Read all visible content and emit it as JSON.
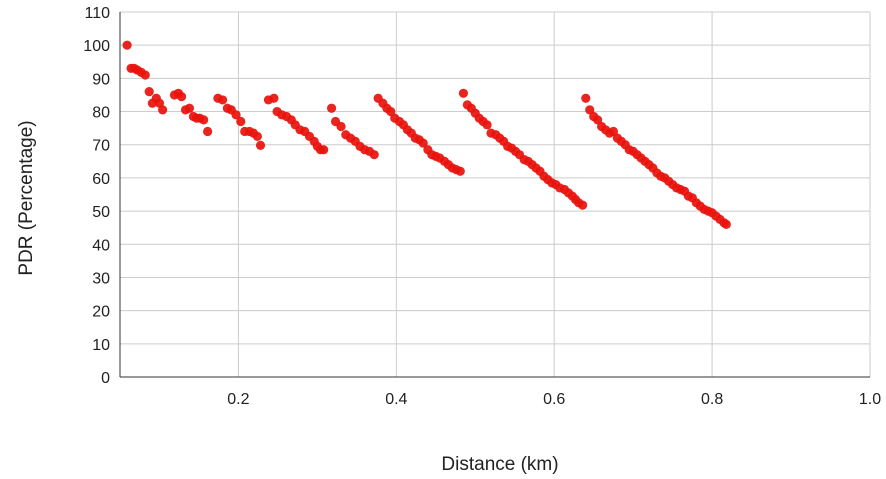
{
  "chart_data": {
    "type": "scatter",
    "title": "",
    "xlabel": "Distance (km)",
    "ylabel": "PDR (Percentage)",
    "xlim": [
      0.05,
      1.0
    ],
    "ylim": [
      0,
      110
    ],
    "x_ticks": [
      0.2,
      0.4,
      0.6,
      0.8,
      1.0
    ],
    "x_tick_labels": [
      "0.2",
      "0.4",
      "0.6",
      "0.8",
      "1.0"
    ],
    "y_ticks": [
      0,
      10,
      20,
      30,
      40,
      50,
      60,
      70,
      80,
      90,
      100,
      110
    ],
    "y_tick_labels": [
      "0",
      "10",
      "20",
      "30",
      "40",
      "50",
      "60",
      "70",
      "80",
      "90",
      "100",
      "110"
    ],
    "grid": true,
    "legend": "none",
    "marker_color": "#e8120c",
    "series": [
      {
        "points": [
          [
            0.059,
            100.0
          ],
          [
            0.064,
            93.0
          ],
          [
            0.068,
            93.0
          ],
          [
            0.072,
            92.5
          ],
          [
            0.077,
            91.8
          ],
          [
            0.082,
            91.0
          ],
          [
            0.087,
            86.0
          ],
          [
            0.091,
            82.5
          ],
          [
            0.096,
            84.0
          ],
          [
            0.1,
            82.5
          ],
          [
            0.104,
            80.5
          ],
          [
            0.119,
            85.0
          ],
          [
            0.124,
            85.5
          ],
          [
            0.128,
            84.5
          ],
          [
            0.133,
            80.5
          ],
          [
            0.138,
            81.0
          ],
          [
            0.143,
            78.5
          ],
          [
            0.147,
            78.0
          ],
          [
            0.151,
            78.0
          ],
          [
            0.156,
            77.5
          ],
          [
            0.161,
            74.0
          ],
          [
            0.174,
            84.0
          ],
          [
            0.18,
            83.5
          ],
          [
            0.186,
            81.0
          ],
          [
            0.191,
            80.5
          ],
          [
            0.197,
            79.0
          ],
          [
            0.203,
            77.0
          ],
          [
            0.208,
            74.0
          ],
          [
            0.214,
            74.0
          ],
          [
            0.219,
            73.5
          ],
          [
            0.224,
            72.5
          ],
          [
            0.228,
            69.8
          ],
          [
            0.238,
            83.5
          ],
          [
            0.245,
            84.0
          ],
          [
            0.249,
            80.0
          ],
          [
            0.255,
            79.0
          ],
          [
            0.261,
            78.5
          ],
          [
            0.267,
            77.5
          ],
          [
            0.272,
            76.0
          ],
          [
            0.278,
            74.5
          ],
          [
            0.284,
            74.0
          ],
          [
            0.29,
            72.5
          ],
          [
            0.296,
            71.0
          ],
          [
            0.3,
            69.5
          ],
          [
            0.304,
            68.5
          ],
          [
            0.308,
            68.5
          ],
          [
            0.318,
            81.0
          ],
          [
            0.323,
            77.0
          ],
          [
            0.33,
            75.5
          ],
          [
            0.336,
            73.0
          ],
          [
            0.342,
            72.0
          ],
          [
            0.348,
            71.0
          ],
          [
            0.354,
            69.5
          ],
          [
            0.36,
            68.5
          ],
          [
            0.366,
            68.0
          ],
          [
            0.372,
            67.0
          ],
          [
            0.377,
            84.0
          ],
          [
            0.383,
            82.5
          ],
          [
            0.388,
            81.0
          ],
          [
            0.393,
            80.0
          ],
          [
            0.398,
            78.0
          ],
          [
            0.404,
            77.0
          ],
          [
            0.409,
            76.0
          ],
          [
            0.414,
            74.5
          ],
          [
            0.419,
            73.5
          ],
          [
            0.424,
            72.0
          ],
          [
            0.429,
            71.5
          ],
          [
            0.434,
            70.5
          ],
          [
            0.44,
            68.5
          ],
          [
            0.445,
            67.0
          ],
          [
            0.45,
            66.5
          ],
          [
            0.455,
            66.0
          ],
          [
            0.461,
            65.0
          ],
          [
            0.466,
            64.0
          ],
          [
            0.471,
            63.0
          ],
          [
            0.476,
            62.5
          ],
          [
            0.481,
            62.0
          ],
          [
            0.485,
            85.5
          ],
          [
            0.49,
            82.0
          ],
          [
            0.495,
            81.0
          ],
          [
            0.5,
            79.5
          ],
          [
            0.505,
            78.0
          ],
          [
            0.51,
            77.0
          ],
          [
            0.515,
            76.0
          ],
          [
            0.52,
            73.5
          ],
          [
            0.526,
            73.0
          ],
          [
            0.531,
            72.0
          ],
          [
            0.536,
            71.0
          ],
          [
            0.541,
            69.5
          ],
          [
            0.546,
            69.0
          ],
          [
            0.551,
            68.0
          ],
          [
            0.556,
            67.0
          ],
          [
            0.562,
            65.5
          ],
          [
            0.567,
            65.0
          ],
          [
            0.572,
            64.0
          ],
          [
            0.577,
            63.0
          ],
          [
            0.582,
            62.0
          ],
          [
            0.587,
            60.5
          ],
          [
            0.592,
            59.5
          ],
          [
            0.597,
            58.5
          ],
          [
            0.602,
            58.0
          ],
          [
            0.607,
            57.0
          ],
          [
            0.613,
            56.5
          ],
          [
            0.618,
            55.5
          ],
          [
            0.623,
            54.5
          ],
          [
            0.627,
            53.5
          ],
          [
            0.631,
            52.5
          ],
          [
            0.636,
            51.8
          ],
          [
            0.64,
            84.0
          ],
          [
            0.645,
            80.5
          ],
          [
            0.65,
            78.5
          ],
          [
            0.655,
            77.5
          ],
          [
            0.66,
            75.5
          ],
          [
            0.665,
            74.5
          ],
          [
            0.67,
            73.5
          ],
          [
            0.675,
            74.0
          ],
          [
            0.68,
            72.0
          ],
          [
            0.685,
            71.0
          ],
          [
            0.69,
            70.0
          ],
          [
            0.695,
            68.5
          ],
          [
            0.7,
            68.0
          ],
          [
            0.705,
            67.0
          ],
          [
            0.71,
            66.0
          ],
          [
            0.715,
            65.0
          ],
          [
            0.72,
            64.0
          ],
          [
            0.725,
            63.0
          ],
          [
            0.73,
            61.5
          ],
          [
            0.735,
            60.5
          ],
          [
            0.74,
            60.0
          ],
          [
            0.745,
            59.0
          ],
          [
            0.75,
            58.0
          ],
          [
            0.755,
            57.0
          ],
          [
            0.76,
            56.5
          ],
          [
            0.765,
            56.0
          ],
          [
            0.77,
            54.5
          ],
          [
            0.775,
            54.0
          ],
          [
            0.78,
            52.5
          ],
          [
            0.785,
            51.5
          ],
          [
            0.79,
            50.5
          ],
          [
            0.795,
            50.0
          ],
          [
            0.8,
            49.5
          ],
          [
            0.805,
            48.5
          ],
          [
            0.81,
            47.5
          ],
          [
            0.815,
            46.5
          ],
          [
            0.818,
            46.0
          ]
        ]
      }
    ]
  }
}
